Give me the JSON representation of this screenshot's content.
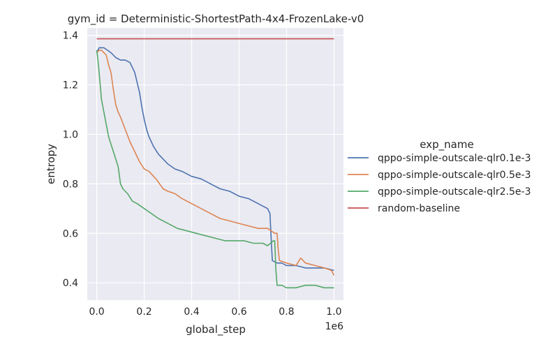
{
  "chart_data": {
    "type": "line",
    "title": "gym_id = Deterministic-ShortestPath-4x4-FrozenLake-v0",
    "xlabel": "global_step",
    "ylabel": "entropy",
    "x_offset_text": "1e6",
    "xlim": [
      -0.04,
      1.04
    ],
    "ylim": [
      0.33,
      1.43
    ],
    "x_ticks": [
      0.0,
      0.2,
      0.4,
      0.6,
      0.8,
      1.0
    ],
    "x_tick_labels": [
      "0.0",
      "0.2",
      "0.4",
      "0.6",
      "0.8",
      "1.0"
    ],
    "y_ticks": [
      0.4,
      0.6,
      0.8,
      1.0,
      1.2,
      1.4
    ],
    "y_tick_labels": [
      "0.4",
      "0.6",
      "0.8",
      "1.0",
      "1.2",
      "1.4"
    ],
    "grid": true,
    "legend_title": "exp_name",
    "legend_position": "right",
    "background": "#eaeaf2",
    "series": [
      {
        "name": "qppo-simple-outscale-qlr0.1e-3",
        "color": "#4c72b0",
        "x": [
          0.0,
          0.01,
          0.03,
          0.06,
          0.08,
          0.1,
          0.12,
          0.14,
          0.15,
          0.16,
          0.17,
          0.18,
          0.19,
          0.2,
          0.21,
          0.22,
          0.24,
          0.26,
          0.28,
          0.3,
          0.33,
          0.36,
          0.4,
          0.44,
          0.48,
          0.52,
          0.56,
          0.6,
          0.64,
          0.68,
          0.7,
          0.72,
          0.73,
          0.735,
          0.74,
          0.76,
          0.78,
          0.8,
          0.84,
          0.88,
          0.92,
          0.96,
          1.0
        ],
        "y": [
          1.33,
          1.35,
          1.35,
          1.33,
          1.31,
          1.3,
          1.3,
          1.29,
          1.27,
          1.25,
          1.21,
          1.17,
          1.11,
          1.06,
          1.02,
          0.99,
          0.95,
          0.92,
          0.9,
          0.88,
          0.86,
          0.85,
          0.83,
          0.82,
          0.8,
          0.78,
          0.77,
          0.75,
          0.74,
          0.72,
          0.71,
          0.7,
          0.68,
          0.58,
          0.49,
          0.48,
          0.48,
          0.47,
          0.47,
          0.46,
          0.46,
          0.46,
          0.45
        ]
      },
      {
        "name": "qppo-simple-outscale-qlr0.5e-3",
        "color": "#dd8452",
        "x": [
          0.0,
          0.01,
          0.02,
          0.04,
          0.05,
          0.06,
          0.07,
          0.08,
          0.09,
          0.1,
          0.12,
          0.14,
          0.16,
          0.18,
          0.2,
          0.22,
          0.25,
          0.28,
          0.3,
          0.33,
          0.36,
          0.4,
          0.44,
          0.48,
          0.52,
          0.56,
          0.6,
          0.64,
          0.68,
          0.72,
          0.75,
          0.76,
          0.765,
          0.77,
          0.8,
          0.84,
          0.86,
          0.88,
          0.92,
          0.96,
          0.99,
          1.0
        ],
        "y": [
          1.33,
          1.34,
          1.34,
          1.32,
          1.28,
          1.25,
          1.18,
          1.12,
          1.09,
          1.07,
          1.02,
          0.97,
          0.93,
          0.89,
          0.86,
          0.85,
          0.82,
          0.78,
          0.77,
          0.76,
          0.74,
          0.72,
          0.7,
          0.68,
          0.66,
          0.65,
          0.64,
          0.63,
          0.62,
          0.62,
          0.6,
          0.6,
          0.53,
          0.49,
          0.48,
          0.47,
          0.5,
          0.48,
          0.47,
          0.46,
          0.45,
          0.43
        ]
      },
      {
        "name": "qppo-simple-outscale-qlr2.5e-3",
        "color": "#55a868",
        "x": [
          0.0,
          0.005,
          0.01,
          0.02,
          0.03,
          0.04,
          0.05,
          0.06,
          0.07,
          0.08,
          0.09,
          0.1,
          0.11,
          0.13,
          0.15,
          0.17,
          0.2,
          0.23,
          0.26,
          0.3,
          0.34,
          0.38,
          0.42,
          0.46,
          0.5,
          0.54,
          0.58,
          0.62,
          0.66,
          0.7,
          0.72,
          0.745,
          0.75,
          0.755,
          0.76,
          0.78,
          0.8,
          0.84,
          0.88,
          0.92,
          0.96,
          1.0
        ],
        "y": [
          1.34,
          1.3,
          1.25,
          1.14,
          1.09,
          1.04,
          0.99,
          0.96,
          0.93,
          0.9,
          0.87,
          0.8,
          0.78,
          0.76,
          0.73,
          0.72,
          0.7,
          0.68,
          0.66,
          0.64,
          0.62,
          0.61,
          0.6,
          0.59,
          0.58,
          0.57,
          0.57,
          0.57,
          0.56,
          0.56,
          0.55,
          0.57,
          0.57,
          0.45,
          0.39,
          0.39,
          0.38,
          0.38,
          0.39,
          0.39,
          0.38,
          0.38
        ]
      },
      {
        "name": "random-baseline",
        "color": "#c44e52",
        "x": [
          0.0,
          1.0
        ],
        "y": [
          1.386,
          1.386
        ]
      }
    ]
  }
}
